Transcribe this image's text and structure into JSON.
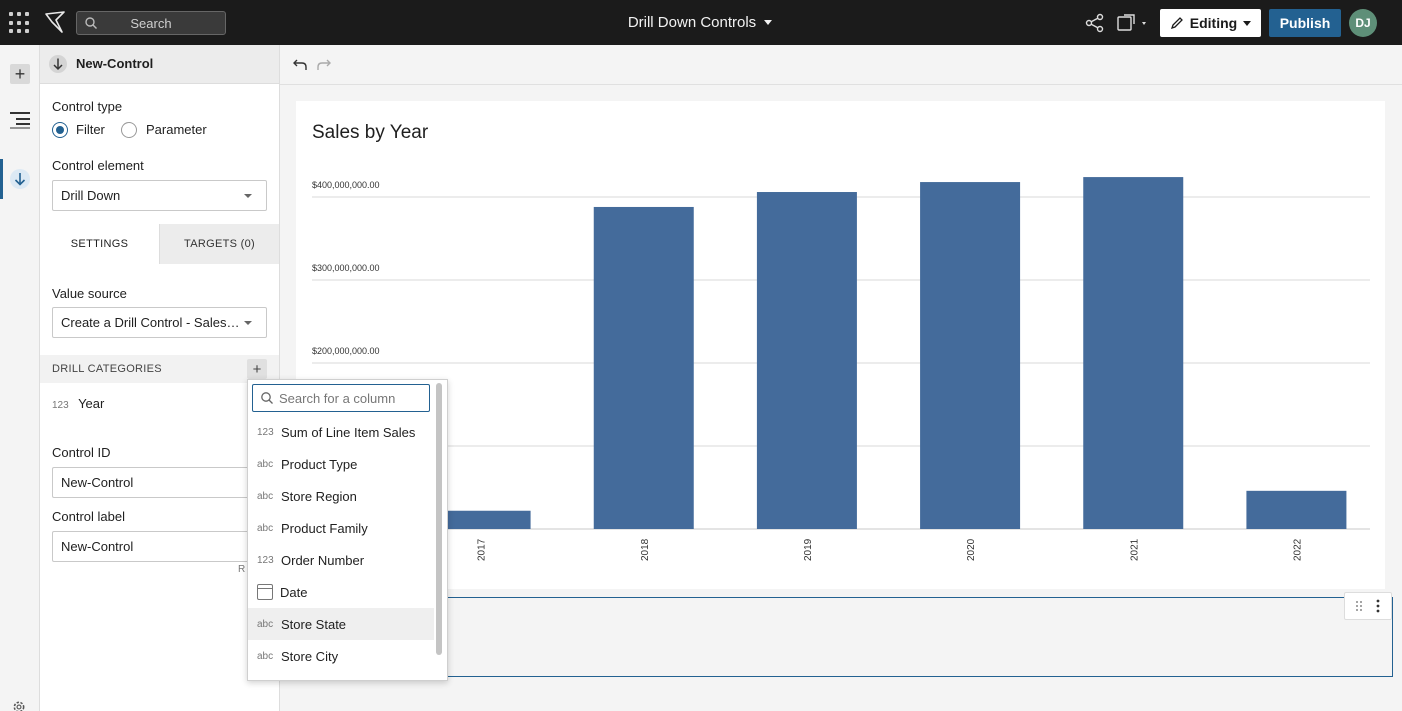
{
  "topbar": {
    "search_placeholder": "Search",
    "doc_title": "Drill Down Controls",
    "editing_label": "Editing",
    "publish_label": "Publish",
    "avatar_initials": "DJ"
  },
  "panel": {
    "header_title": "New-Control",
    "control_type_label": "Control type",
    "radio_filter": "Filter",
    "radio_parameter": "Parameter",
    "control_type_selected": "Filter",
    "control_element_label": "Control element",
    "control_element_value": "Drill Down",
    "tab_settings": "SETTINGS",
    "tab_targets": "TARGETS (0)",
    "value_source_label": "Value source",
    "value_source_value": "Create a Drill Control - Sales…",
    "drill_categories_label": "DRILL CATEGORIES",
    "drill_items": [
      {
        "tag": "123",
        "label": "Year"
      }
    ],
    "control_id_label": "Control ID",
    "control_id_value": "New-Control",
    "control_label_label": "Control label",
    "control_label_value": "New-Control",
    "r_hint": "R"
  },
  "dropdown": {
    "search_placeholder": "Search for a column",
    "items": [
      {
        "tag": "123",
        "label": "Sum of Line Item Sales"
      },
      {
        "tag": "abc",
        "label": "Product Type"
      },
      {
        "tag": "abc",
        "label": "Store Region"
      },
      {
        "tag": "abc",
        "label": "Product Family"
      },
      {
        "tag": "123",
        "label": "Order Number"
      },
      {
        "tag": "calendar-icon",
        "label": "Date"
      },
      {
        "tag": "abc",
        "label": "Store State"
      },
      {
        "tag": "abc",
        "label": "Store City"
      }
    ],
    "hovered": "Store State"
  },
  "chart_data": {
    "type": "bar",
    "title": "Sales by Year",
    "categories": [
      "2017",
      "2018",
      "2019",
      "2020",
      "2021",
      "2022"
    ],
    "values": [
      22000000,
      388000000,
      406000000,
      418000000,
      424000000,
      46000000
    ],
    "yticks": [
      "$200,000,000.00",
      "$300,000,000.00",
      "$400,000,000.00"
    ],
    "ytick_values": [
      200000000,
      300000000,
      400000000
    ],
    "ylim": [
      0,
      420000000
    ],
    "grid": true,
    "bar_color": "#446b9b"
  },
  "colors": {
    "accent": "#236191",
    "topbar": "#1b1b1b",
    "avatar": "#5e8f78"
  }
}
